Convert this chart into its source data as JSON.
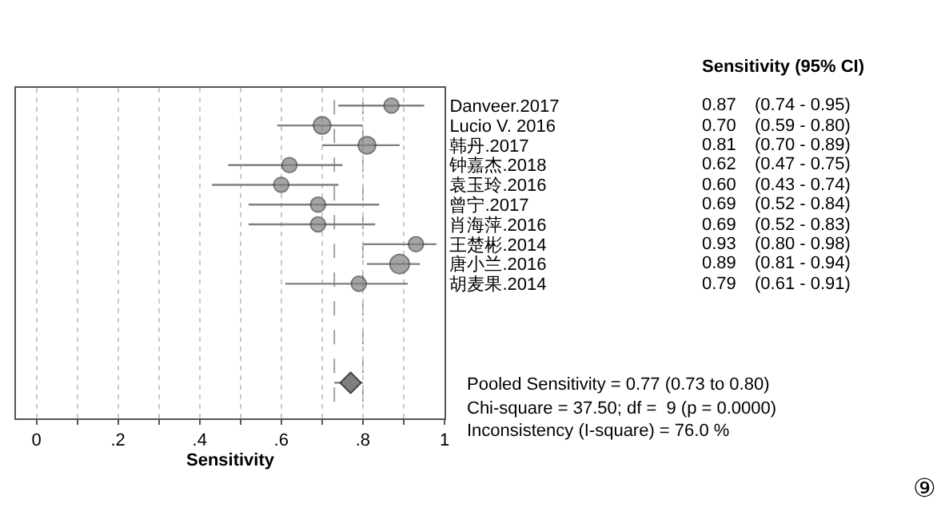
{
  "chart_data": {
    "type": "bubble",
    "orientation": "horizontal",
    "xlabel": "Sensitivity",
    "categories": [
      "Danveer.2017",
      "Lucio V. 2016",
      "韩丹.2017",
      "钟嘉杰.2018",
      "袁玉玲.2016",
      "曾宁.2017",
      "肖海萍.2016",
      "王楚彬.2014",
      "唐小兰.2016",
      "胡麦果.2014",
      null,
      null,
      null,
      null,
      null,
      null
    ],
    "series": [
      {
        "color": "#7f7f7f",
        "values": [
          0.87,
          0.7,
          0.81,
          0.62,
          0.6,
          0.69,
          0.69,
          0.93,
          0.89,
          0.79,
          null,
          null,
          null,
          null,
          null,
          null
        ],
        "sizes": [
          0.6,
          0.8,
          0.8,
          0.6,
          0.6,
          0.6,
          0.6,
          0.6,
          1,
          0.6,
          null,
          null,
          null,
          null,
          null,
          null
        ],
        "errors": [
          [
            0.74,
            0.95
          ],
          [
            0.59,
            0.8
          ],
          [
            0.7,
            0.89
          ],
          [
            0.47,
            0.75
          ],
          [
            0.43,
            0.74
          ],
          [
            0.52,
            0.84
          ],
          [
            0.52,
            0.83
          ],
          [
            0.8,
            0.98
          ],
          [
            0.81,
            0.94
          ],
          [
            0.61,
            0.91
          ],
          null,
          null,
          null,
          null,
          null,
          null
        ],
        "value_labels": [
          "0.87 (0.74 - 0.95)",
          "0.70 (0.59 - 0.80)",
          "0.81 (0.70 - 0.89)",
          "0.62 (0.47 - 0.75)",
          "0.60 (0.43 - 0.74)",
          "0.69 (0.52 - 0.84)",
          "0.69 (0.52 - 0.83)",
          "0.93 (0.80 - 0.98)",
          "0.89 (0.81 - 0.94)",
          "0.79 (0.61 - 0.91)",
          null,
          null,
          null,
          null,
          null,
          null
        ]
      },
      {
        "type": "scatter",
        "marker": "diamond",
        "color": "#7f7f7f",
        "values": [
          null,
          null,
          null,
          null,
          null,
          null,
          null,
          null,
          null,
          null,
          null,
          null,
          null,
          null,
          0.77,
          null
        ],
        "errors": [
          null,
          null,
          null,
          null,
          null,
          null,
          null,
          null,
          null,
          null,
          null,
          null,
          null,
          null,
          [
            0.73,
            0.8
          ],
          null
        ]
      }
    ],
    "xlim": [
      -0.05,
      1
    ],
    "xticks": [
      0,
      {
        "value": 0.1,
        "label": null
      },
      {
        "value": 0.2,
        "label": ".2"
      },
      {
        "value": 0.3,
        "label": null
      },
      {
        "value": 0.4,
        "label": ".4"
      },
      {
        "value": 0.5,
        "label": null
      },
      {
        "value": 0.6,
        "label": ".6"
      },
      {
        "value": 0.7,
        "label": null
      },
      {
        "value": 0.8,
        "label": ".8"
      },
      {
        "value": 0.9,
        "label": null
      },
      1
    ],
    "grid": "x",
    "ref_lines": [
      {
        "axis": "x",
        "value": 0.73,
        "line_style": "dashed",
        "color": "#a0a0a0"
      },
      {
        "axis": "x",
        "value": 0.8,
        "line_style": "dashed",
        "color": "#a0a0a0"
      }
    ],
    "annotations": [
      "Sensitivity (95% CI)",
      "Pooled Sensitivity = 0.77 (0.73 to 0.80)",
      "Chi-square = 37.50; df =  9 (p = 0.0000)",
      "Inconsistency (I-square) = 76.0 %",
      "⑨"
    ]
  }
}
